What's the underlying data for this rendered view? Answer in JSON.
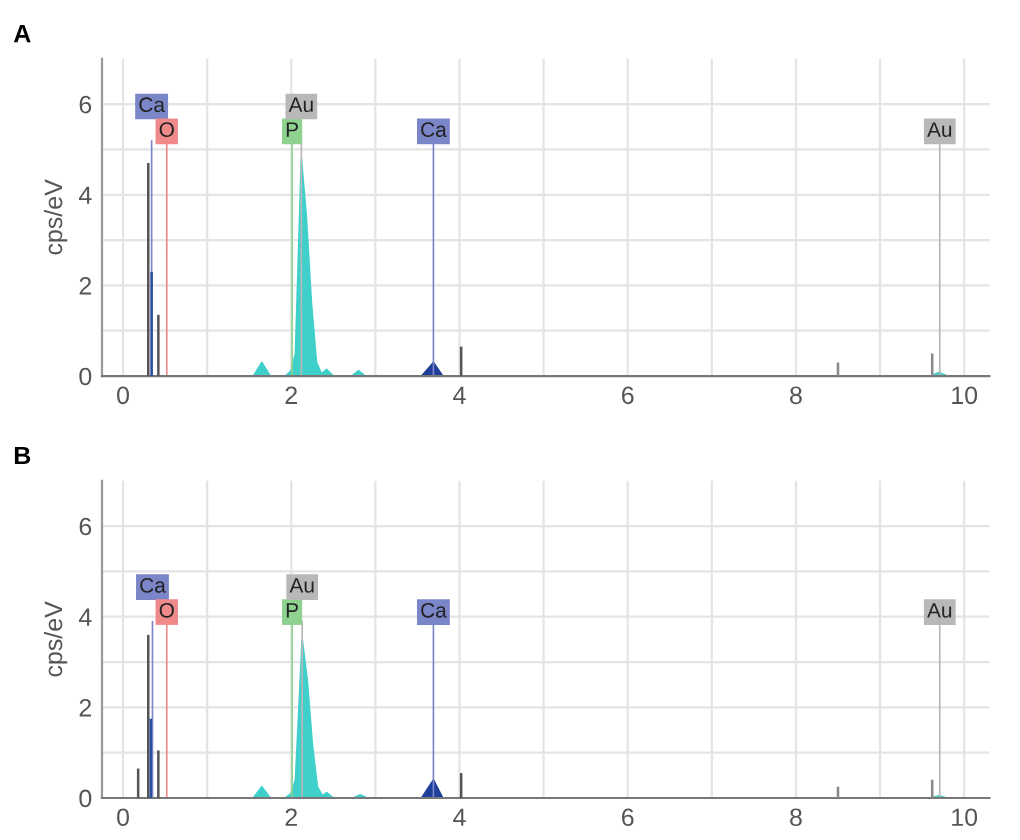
{
  "chart_data": [
    {
      "type": "area",
      "title": "A",
      "ylabel": "cps/eV",
      "xlim": [
        -0.25,
        10.3
      ],
      "ylim": [
        0,
        7
      ],
      "xticks": [
        0,
        {
          "value": 1,
          "label": null
        },
        2,
        {
          "value": 3,
          "label": null
        },
        4,
        {
          "value": 5,
          "label": null
        },
        6,
        {
          "value": 7,
          "label": null
        },
        8,
        {
          "value": 9,
          "label": null
        },
        10
      ],
      "yticks": [
        0,
        {
          "value": 1,
          "label": null
        },
        2,
        {
          "value": 3,
          "label": null
        },
        4,
        {
          "value": 5,
          "label": null
        },
        6
      ],
      "grid": true,
      "series": [
        {
          "color": "#3fd0cc",
          "x": [
            1.55,
            1.65,
            1.75,
            1.93,
            2.0,
            2.05,
            2.12,
            2.18,
            2.24,
            2.3,
            2.36,
            2.42,
            2.5,
            2.72,
            2.8,
            2.88,
            9.6,
            9.7,
            9.8
          ],
          "values": [
            0,
            0.3,
            0,
            0,
            0.12,
            0.5,
            4.8,
            3.5,
            1.6,
            0.3,
            0.05,
            0.15,
            0,
            0,
            0.12,
            0,
            0,
            0.08,
            0
          ]
        },
        {
          "color": "#1f3f9a",
          "x": [
            3.55,
            3.69,
            3.8
          ],
          "values": [
            0,
            0.3,
            0
          ]
        },
        {
          "type": "bar",
          "x": [
            0.3,
            0.34,
            0.42,
            4.02,
            8.5,
            9.62
          ],
          "values": [
            4.7,
            2.3,
            1.35,
            0.65,
            0.3,
            0.5
          ],
          "colors": [
            "#555555",
            "#2a4ea0",
            "#555555",
            "#555555",
            "#888888",
            "#888888"
          ]
        }
      ],
      "ref_lines": [
        {
          "axis": "x",
          "value": 0.34,
          "label": "Ca",
          "color": "#7b86c8"
        },
        {
          "axis": "x",
          "value": 0.52,
          "label": "O",
          "color": "#f08a8a"
        },
        {
          "axis": "x",
          "value": 2.01,
          "label": "P",
          "color": "#8fd18f"
        },
        {
          "axis": "x",
          "value": 2.12,
          "label": "Au",
          "color": "#b8b8b8"
        },
        {
          "axis": "x",
          "value": 3.69,
          "label": "Ca",
          "color": "#7b86c8"
        },
        {
          "axis": "x",
          "value": 9.71,
          "label": "Au",
          "color": "#b8b8b8"
        }
      ]
    },
    {
      "type": "area",
      "title": "B",
      "ylabel": "cps/eV",
      "xlim": [
        -0.25,
        10.3
      ],
      "ylim": [
        0,
        7
      ],
      "xticks": [
        0,
        {
          "value": 1,
          "label": null
        },
        2,
        {
          "value": 3,
          "label": null
        },
        4,
        {
          "value": 5,
          "label": null
        },
        6,
        {
          "value": 7,
          "label": null
        },
        8,
        {
          "value": 9,
          "label": null
        },
        10
      ],
      "yticks": [
        0,
        {
          "value": 1,
          "label": null
        },
        2,
        {
          "value": 3,
          "label": null
        },
        4,
        {
          "value": 5,
          "label": null
        },
        6
      ],
      "grid": true,
      "series": [
        {
          "color": "#3fd0cc",
          "x": [
            1.55,
            1.65,
            1.75,
            1.93,
            2.0,
            2.05,
            2.13,
            2.19,
            2.25,
            2.31,
            2.37,
            2.42,
            2.5,
            2.74,
            2.82,
            2.9,
            9.6,
            9.7,
            9.8
          ],
          "values": [
            0,
            0.25,
            0,
            0,
            0.1,
            0.4,
            3.5,
            2.6,
            1.2,
            0.25,
            0.05,
            0.12,
            0,
            0,
            0.07,
            0,
            0,
            0.05,
            0
          ]
        },
        {
          "color": "#1f3f9a",
          "x": [
            3.55,
            3.69,
            3.8
          ],
          "values": [
            0,
            0.4,
            0
          ]
        },
        {
          "type": "bar",
          "x": [
            0.18,
            0.3,
            0.33,
            0.42,
            4.02,
            8.5,
            9.62
          ],
          "values": [
            0.65,
            3.6,
            1.75,
            1.05,
            0.55,
            0.25,
            0.4
          ],
          "colors": [
            "#555555",
            "#555555",
            "#2a4ea0",
            "#555555",
            "#555555",
            "#888888",
            "#888888"
          ]
        }
      ],
      "ref_lines": [
        {
          "axis": "x",
          "value": 0.35,
          "label": "Ca",
          "color": "#7b86c8"
        },
        {
          "axis": "x",
          "value": 0.52,
          "label": "O",
          "color": "#f08a8a"
        },
        {
          "axis": "x",
          "value": 2.01,
          "label": "P",
          "color": "#8fd18f"
        },
        {
          "axis": "x",
          "value": 2.13,
          "label": "Au",
          "color": "#b8b8b8"
        },
        {
          "axis": "x",
          "value": 3.69,
          "label": "Ca",
          "color": "#7b86c8"
        },
        {
          "axis": "x",
          "value": 9.71,
          "label": "Au",
          "color": "#b8b8b8"
        }
      ]
    }
  ]
}
